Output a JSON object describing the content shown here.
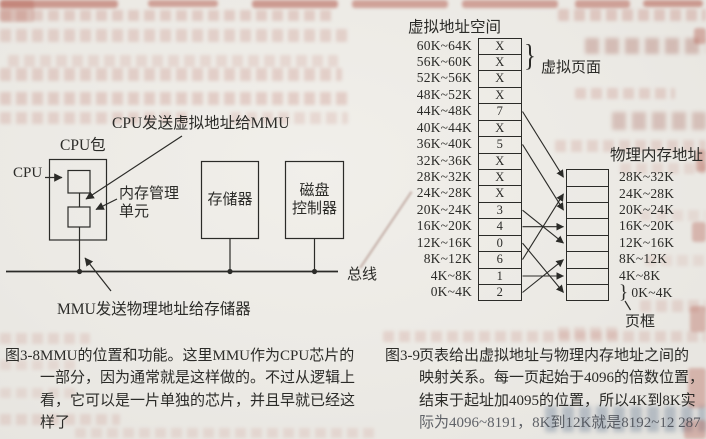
{
  "colors": {
    "ink": "#2b2b28",
    "paper": "#edeae5",
    "bleed_pink": "#bc6f63"
  },
  "figure_3_8": {
    "labels": {
      "cpu_send": "CPU发送虚拟地址给MMU",
      "cpu_package": "CPU包",
      "cpu": "CPU",
      "mmu_line1": "内存管理",
      "mmu_line2": "单元",
      "memory": "存储器",
      "disk_line1": "磁盘",
      "disk_line2": "控制器",
      "bus": "总线",
      "mmu_send": "MMU发送物理地址给存储器"
    },
    "caption": {
      "tag": "图3-8",
      "lines": [
        "MMU的位置和功能。这里MMU作为CPU芯片的",
        "一部分，因为通常就是这样做的。不过从逻辑上",
        "看，它可以是一片单独的芯片，并且早就已经这",
        "样了"
      ]
    }
  },
  "figure_3_9": {
    "title": "虚拟地址空间",
    "virtual_page_label": "虚拟页面",
    "physical_label": "物理内存地址",
    "page_frame_label": "页框",
    "page_brace": "}",
    "frame_brace": "}",
    "virtual_rows": [
      {
        "range": "60K~64K",
        "value": "X"
      },
      {
        "range": "56K~60K",
        "value": "X"
      },
      {
        "range": "52K~56K",
        "value": "X"
      },
      {
        "range": "48K~52K",
        "value": "X"
      },
      {
        "range": "44K~48K",
        "value": "7"
      },
      {
        "range": "40K~44K",
        "value": "X"
      },
      {
        "range": "36K~40K",
        "value": "5"
      },
      {
        "range": "32K~36K",
        "value": "X"
      },
      {
        "range": "28K~32K",
        "value": "X"
      },
      {
        "range": "24K~28K",
        "value": "X"
      },
      {
        "range": "20K~24K",
        "value": "3"
      },
      {
        "range": "16K~20K",
        "value": "4"
      },
      {
        "range": "12K~16K",
        "value": "0"
      },
      {
        "range": "8K~12K",
        "value": "6"
      },
      {
        "range": "4K~8K",
        "value": "1"
      },
      {
        "range": "0K~4K",
        "value": "2"
      }
    ],
    "physical_rows": [
      "28K~32K",
      "24K~28K",
      "20K~24K",
      "16K~20K",
      "12K~16K",
      "8K~12K",
      "4K~8K",
      "0K~4K"
    ],
    "mappings": [
      {
        "from": 4,
        "to": 0
      },
      {
        "from": 6,
        "to": 2
      },
      {
        "from": 10,
        "to": 4
      },
      {
        "from": 11,
        "to": 3
      },
      {
        "from": 12,
        "to": 7
      },
      {
        "from": 13,
        "to": 1
      },
      {
        "from": 14,
        "to": 6
      },
      {
        "from": 15,
        "to": 5
      }
    ],
    "caption": {
      "tag": "图3-9",
      "lines": [
        "页表给出虚拟地址与物理内存地址之间的",
        "映射关系。每一页起始于4096的倍数位置，",
        "结束于起址加4095的位置，所以4K到8K实",
        "际为4096~8191，8K到12K就是8192~12 287"
      ]
    }
  }
}
